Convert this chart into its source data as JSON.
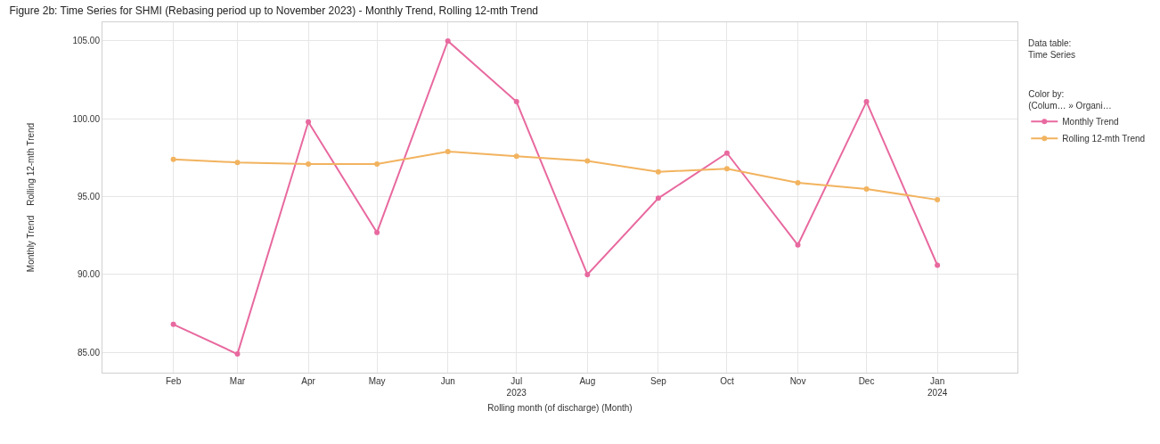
{
  "chart_data": {
    "type": "line",
    "title": "Figure 2b: Time Series for SHMI (Rebasing period up to November 2023) - Monthly Trend, Rolling 12-mth Trend",
    "xlabel": "Rolling month (of discharge) (Month)",
    "ylabel": "Monthly Trend    Rolling 12-mth Trend",
    "x": [
      "2023-02",
      "2023-03",
      "2023-04",
      "2023-05",
      "2023-06",
      "2023-07",
      "2023-08",
      "2023-09",
      "2023-10",
      "2023-11",
      "2023-12",
      "2024-01"
    ],
    "series": [
      {
        "name": "Monthly Trend",
        "color": "#e8699f",
        "values": [
          86.8,
          84.9,
          99.8,
          92.7,
          105.0,
          101.1,
          90.0,
          94.9,
          97.8,
          91.9,
          101.1,
          90.6
        ]
      },
      {
        "name": "Rolling 12-mth Trend",
        "color": "#f2b35f",
        "values": [
          97.4,
          97.2,
          97.1,
          97.1,
          97.9,
          97.6,
          97.3,
          96.6,
          96.8,
          95.9,
          95.5,
          94.8
        ]
      }
    ],
    "xlim": [
      "2023-01-01",
      "2024-02-05"
    ],
    "xticks": [
      {
        "value": "2023-02",
        "label": "Feb"
      },
      {
        "value": "2023-03",
        "label": "Mar"
      },
      {
        "value": "2023-04",
        "label": "Apr"
      },
      {
        "value": "2023-05",
        "label": "May"
      },
      {
        "value": "2023-06",
        "label": "Jun"
      },
      {
        "value": "2023-07",
        "label": "Jul\n2023"
      },
      {
        "value": "2023-08",
        "label": "Aug"
      },
      {
        "value": "2023-09",
        "label": "Sep"
      },
      {
        "value": "2023-10",
        "label": "Oct"
      },
      {
        "value": "2023-11",
        "label": "Nov"
      },
      {
        "value": "2023-12",
        "label": "Dec"
      },
      {
        "value": "2024-01",
        "label": "Jan\n2024"
      }
    ],
    "ylim": [
      83.7,
      106.2
    ],
    "yticks": [
      {
        "value": 85,
        "label": "85.00"
      },
      {
        "value": 90,
        "label": "90.00"
      },
      {
        "value": 95,
        "label": "95.00"
      },
      {
        "value": 100,
        "label": "100.00"
      },
      {
        "value": 105,
        "label": "105.00"
      }
    ],
    "grid": true,
    "marker": "circle",
    "line_style": "solid",
    "legend": "top right",
    "legend_title": "Color by:\n(Colum… » Organi…",
    "annotations": [
      "Data table:\nTime Series"
    ]
  }
}
